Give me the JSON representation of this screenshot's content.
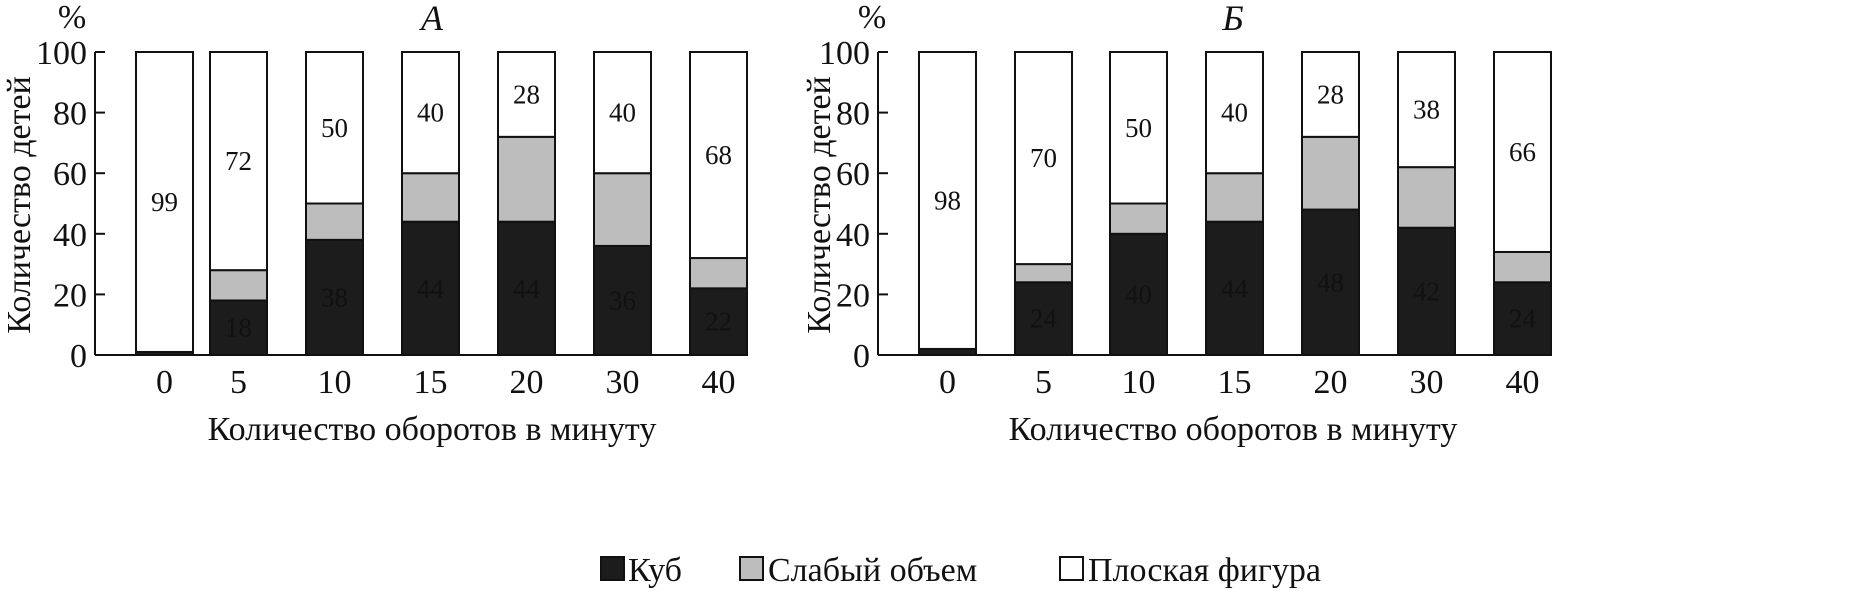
{
  "colors": {
    "cube": "#1c1c1c",
    "weak": "#bdbdbd",
    "flat": "#ffffff",
    "stroke": "#111111"
  },
  "legend": {
    "items": [
      {
        "label": "Куб",
        "color": "#1c1c1c"
      },
      {
        "label": "Слабый объем",
        "color": "#bdbdbd"
      },
      {
        "label": "Плоская фигура",
        "color": "#ffffff"
      }
    ]
  },
  "chart_data": [
    {
      "type": "bar",
      "stacked": true,
      "title": "А",
      "unit_label": "%",
      "xlabel": "Количество оборотов в минуту",
      "ylabel": "Количество детей",
      "ylim": [
        0,
        100
      ],
      "yticks": [
        0,
        20,
        40,
        60,
        80,
        100
      ],
      "categories": [
        "0",
        "5",
        "10",
        "15",
        "20",
        "30",
        "40"
      ],
      "series": [
        {
          "name": "Куб",
          "values": [
            1,
            18,
            38,
            44,
            44,
            36,
            22
          ],
          "labels": [
            "",
            "18",
            "38",
            "44",
            "44",
            "36",
            "22"
          ]
        },
        {
          "name": "Слабый объем",
          "values": [
            0,
            10,
            12,
            16,
            28,
            24,
            10
          ],
          "labels": [
            "",
            "",
            "",
            "",
            "",
            "",
            ""
          ]
        },
        {
          "name": "Плоская фигура",
          "values": [
            99,
            72,
            50,
            40,
            28,
            40,
            68
          ],
          "labels": [
            "99",
            "72",
            "50",
            "40",
            "28",
            "40",
            "68"
          ]
        }
      ]
    },
    {
      "type": "bar",
      "stacked": true,
      "title": "Б",
      "unit_label": "%",
      "xlabel": "Количество оборотов в минуту",
      "ylabel": "Количество детей",
      "ylim": [
        0,
        100
      ],
      "yticks": [
        0,
        20,
        40,
        60,
        80,
        100
      ],
      "categories": [
        "0",
        "5",
        "10",
        "15",
        "20",
        "30",
        "40"
      ],
      "series": [
        {
          "name": "Куб",
          "values": [
            2,
            24,
            40,
            44,
            48,
            42,
            24
          ],
          "labels": [
            "",
            "24",
            "40",
            "44",
            "48",
            "42",
            "24"
          ]
        },
        {
          "name": "Слабый объем",
          "values": [
            0,
            6,
            10,
            16,
            24,
            20,
            10
          ],
          "labels": [
            "",
            "",
            "",
            "",
            "",
            "",
            ""
          ]
        },
        {
          "name": "Плоская фигура",
          "values": [
            98,
            70,
            50,
            40,
            28,
            38,
            66
          ],
          "labels": [
            "98",
            "70",
            "50",
            "40",
            "28",
            "38",
            "66"
          ]
        }
      ]
    }
  ]
}
